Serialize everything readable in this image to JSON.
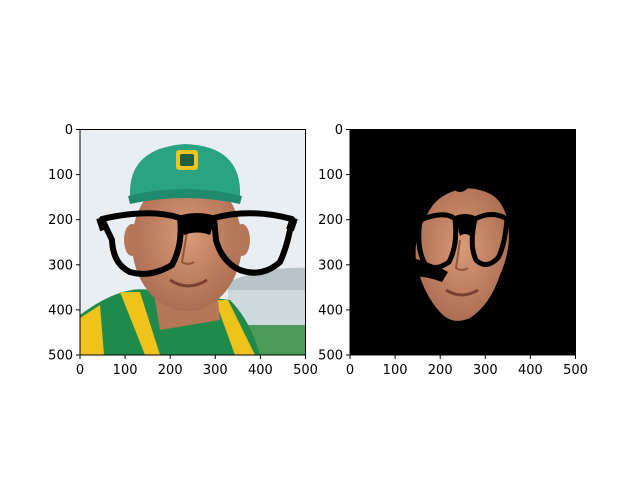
{
  "chart_data": [
    {
      "type": "image",
      "description_of_content": "photo",
      "xlim": [
        0,
        500
      ],
      "ylim": [
        500,
        0
      ],
      "xticks": [
        0,
        100,
        200,
        300,
        400,
        500
      ],
      "yticks": [
        0,
        100,
        200,
        300,
        400,
        500
      ],
      "grid": false,
      "colors": {
        "sky": "#e9eef2",
        "cap": "#2aa383",
        "cap_brim": "#1f8a6d",
        "skin": "#c98a6a",
        "skin_shadow": "#a8694e",
        "hair": "#7a5a3a",
        "glasses": "#000000",
        "jersey_yellow": "#f0c21c",
        "jersey_green": "#1f8a4a",
        "stadium": "#cfd8dc"
      }
    },
    {
      "type": "image",
      "description_of_content": "masked face",
      "xlim": [
        0,
        500
      ],
      "ylim": [
        500,
        0
      ],
      "xticks": [
        0,
        100,
        200,
        300,
        400,
        500
      ],
      "yticks": [
        0,
        100,
        200,
        300,
        400,
        500
      ],
      "grid": false,
      "colors": {
        "background": "#000000",
        "skin": "#c98a6a",
        "skin_shadow": "#a8694e",
        "glasses": "#000000"
      }
    }
  ]
}
